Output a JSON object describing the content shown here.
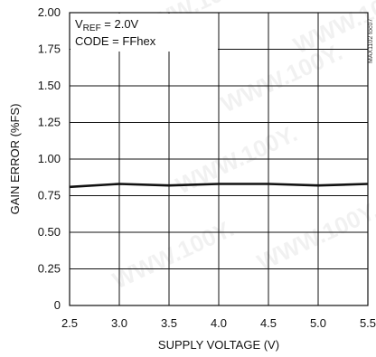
{
  "chart_data": {
    "type": "line",
    "title": "",
    "xlabel": "SUPPLY VOLTAGE (V)",
    "ylabel": "GAIN ERROR (%FS)",
    "xlim": [
      2.5,
      5.5
    ],
    "ylim": [
      0,
      2.0
    ],
    "x_ticks": [
      2.5,
      3.0,
      3.5,
      4.0,
      4.5,
      5.0,
      5.5
    ],
    "x_tick_labels": [
      "2.5",
      "3.0",
      "3.5",
      "4.0",
      "4.5",
      "5.0",
      "5.5"
    ],
    "y_ticks": [
      0,
      0.25,
      0.5,
      0.75,
      1.0,
      1.25,
      1.5,
      1.75,
      2.0
    ],
    "y_tick_labels": [
      "0",
      "0.25",
      "0.50",
      "0.75",
      "1.00",
      "1.25",
      "1.50",
      "1.75",
      "2.00"
    ],
    "grid": true,
    "legend": "none",
    "series": [
      {
        "x": [
          2.5,
          3.0,
          3.5,
          4.0,
          4.5,
          5.0,
          5.5
        ],
        "y": [
          0.81,
          0.83,
          0.82,
          0.83,
          0.83,
          0.82,
          0.83
        ],
        "color": "#111111"
      }
    ],
    "annotation": {
      "vref_main": "V",
      "vref_sub": "REF",
      "vref_value": " = 2.0V",
      "code": "CODE = FFhex"
    },
    "side_label": "MAX1102 toc07",
    "watermark": "WWW.100Y."
  }
}
